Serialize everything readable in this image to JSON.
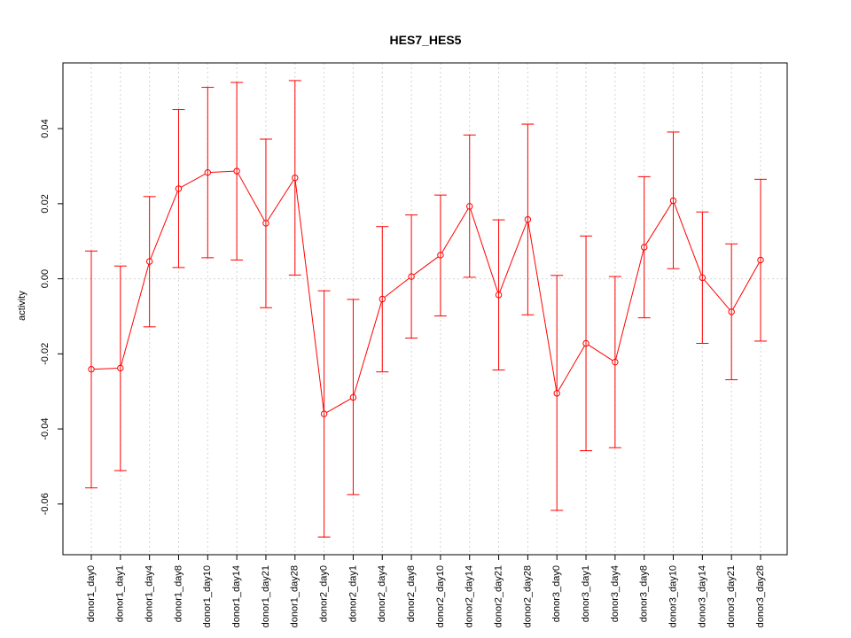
{
  "chart_data": {
    "type": "line",
    "title": "HES7_HES5",
    "xlabel": "",
    "ylabel": "activity",
    "ylim": [
      -0.0735,
      0.0575
    ],
    "yticks": [
      -0.06,
      -0.04,
      -0.02,
      0.0,
      0.02,
      0.04
    ],
    "ytick_labels": [
      "-0.06",
      "-0.04",
      "-0.02",
      "0.00",
      "0.02",
      "0.04"
    ],
    "grid": true,
    "reference_line": 0,
    "series_color": "#ff0000",
    "grid_color": "#d3d3d3",
    "categories": [
      "donor1_day0",
      "donor1_day1",
      "donor1_day4",
      "donor1_day8",
      "donor1_day10",
      "donor1_day14",
      "donor1_day21",
      "donor1_day28",
      "donor2_day0",
      "donor2_day1",
      "donor2_day4",
      "donor2_day8",
      "donor2_day10",
      "donor2_day14",
      "donor2_day21",
      "donor2_day28",
      "donor3_day0",
      "donor3_day1",
      "donor3_day4",
      "donor3_day8",
      "donor3_day10",
      "donor3_day14",
      "donor3_day21",
      "donor3_day28"
    ],
    "values": [
      -0.0241,
      -0.0238,
      0.0046,
      0.024,
      0.0283,
      0.0287,
      0.0148,
      0.0269,
      -0.036,
      -0.0316,
      -0.0054,
      0.0006,
      0.0063,
      0.0193,
      -0.0043,
      0.0158,
      -0.0305,
      -0.0172,
      -0.0222,
      0.0084,
      0.0208,
      0.0003,
      -0.0088,
      0.005
    ],
    "upper": [
      0.0074,
      0.0034,
      0.0219,
      0.0451,
      0.051,
      0.0523,
      0.0372,
      0.0528,
      -0.0032,
      -0.0055,
      0.0139,
      0.017,
      0.0223,
      0.0383,
      0.0157,
      0.0412,
      0.0009,
      0.0114,
      0.0006,
      0.0272,
      0.0391,
      0.0178,
      0.0093,
      0.0265
    ],
    "lower": [
      -0.0557,
      -0.0511,
      -0.0128,
      0.003,
      0.0056,
      0.005,
      -0.0077,
      0.001,
      -0.0688,
      -0.0575,
      -0.0248,
      -0.0158,
      -0.0099,
      0.0004,
      -0.0243,
      -0.0096,
      -0.0617,
      -0.0458,
      -0.045,
      -0.0104,
      0.0027,
      -0.0172,
      -0.0269,
      -0.0166
    ]
  }
}
